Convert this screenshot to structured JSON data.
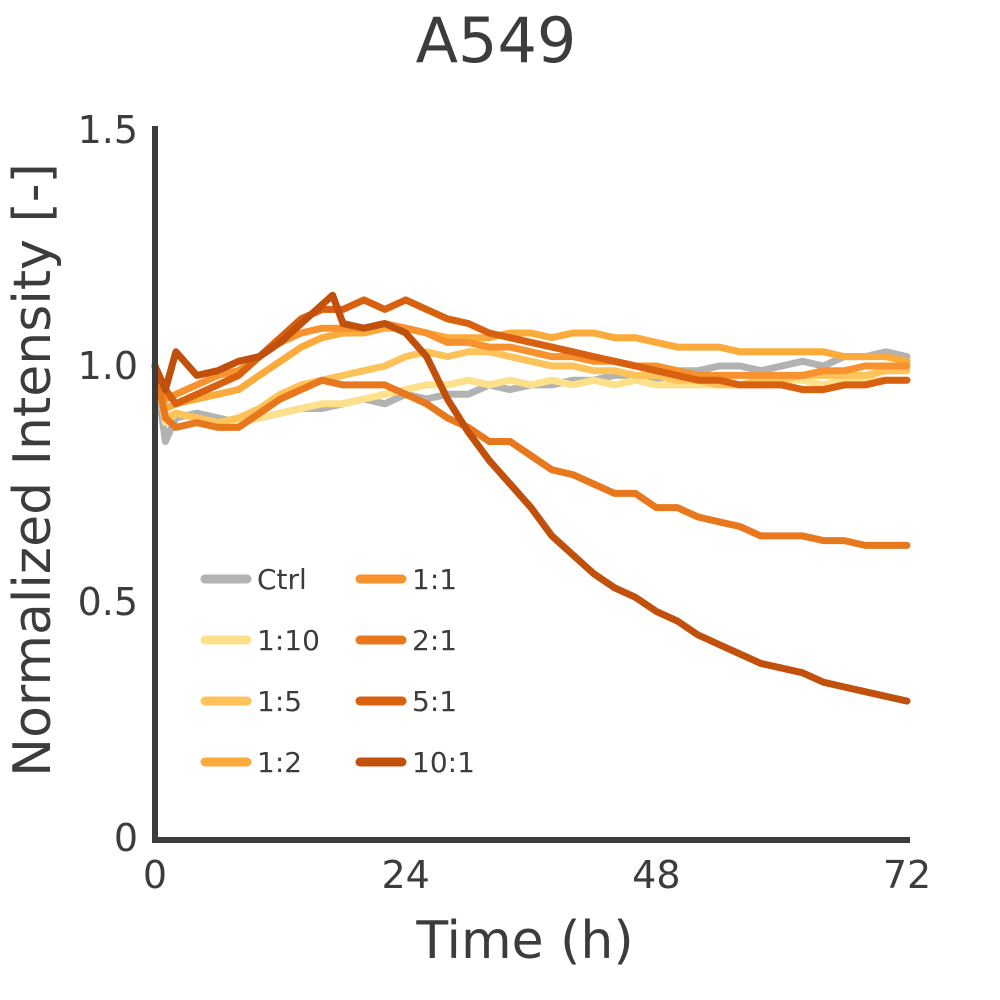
{
  "chart_data": {
    "type": "line",
    "title": "A549",
    "xlabel": "Time (h)",
    "ylabel": "Normalized Intensity [-]",
    "xlim": [
      0,
      72
    ],
    "ylim": [
      0,
      1.5
    ],
    "xticks": [
      0,
      24,
      48,
      72
    ],
    "yticks": [
      0,
      0.5,
      1.0,
      1.5
    ],
    "ytick_labels": [
      "0",
      "0.5",
      "1.0",
      "1.5"
    ],
    "grid": false,
    "legend_position": "lower-left",
    "series": [
      {
        "name": "Ctrl",
        "color": "#b2b2b2",
        "x": [
          0,
          1,
          2,
          4,
          6,
          8,
          10,
          12,
          14,
          16,
          18,
          20,
          22,
          24,
          26,
          28,
          30,
          32,
          34,
          36,
          38,
          40,
          42,
          44,
          46,
          48,
          50,
          52,
          54,
          56,
          58,
          60,
          62,
          64,
          66,
          68,
          70,
          72
        ],
        "values": [
          1.0,
          0.84,
          0.89,
          0.9,
          0.89,
          0.88,
          0.89,
          0.9,
          0.91,
          0.91,
          0.92,
          0.93,
          0.92,
          0.94,
          0.93,
          0.94,
          0.94,
          0.96,
          0.95,
          0.96,
          0.96,
          0.97,
          0.97,
          0.98,
          0.98,
          0.97,
          0.99,
          0.99,
          1.0,
          1.0,
          0.99,
          1.0,
          1.01,
          1.0,
          1.02,
          1.02,
          1.03,
          1.02
        ]
      },
      {
        "name": "1:10",
        "color": "#fce08a",
        "x": [
          0,
          1,
          2,
          4,
          6,
          8,
          10,
          12,
          14,
          16,
          18,
          20,
          22,
          24,
          26,
          28,
          30,
          32,
          34,
          36,
          38,
          40,
          42,
          44,
          46,
          48,
          50,
          52,
          54,
          56,
          58,
          60,
          62,
          64,
          66,
          68,
          70,
          72
        ],
        "values": [
          1.0,
          0.88,
          0.9,
          0.89,
          0.88,
          0.88,
          0.89,
          0.9,
          0.91,
          0.92,
          0.92,
          0.93,
          0.94,
          0.95,
          0.96,
          0.96,
          0.97,
          0.96,
          0.97,
          0.96,
          0.97,
          0.96,
          0.97,
          0.96,
          0.97,
          0.96,
          0.96,
          0.96,
          0.96,
          0.96,
          0.96,
          0.97,
          0.97,
          0.96,
          0.97,
          0.97,
          0.97,
          0.97
        ]
      },
      {
        "name": "1:5",
        "color": "#fdc35a",
        "x": [
          0,
          1,
          2,
          4,
          6,
          8,
          10,
          12,
          14,
          16,
          18,
          20,
          22,
          24,
          26,
          28,
          30,
          32,
          34,
          36,
          38,
          40,
          42,
          44,
          46,
          48,
          50,
          52,
          54,
          56,
          58,
          60,
          62,
          64,
          66,
          68,
          70,
          72
        ],
        "values": [
          1.0,
          0.89,
          0.9,
          0.89,
          0.88,
          0.89,
          0.91,
          0.94,
          0.96,
          0.97,
          0.98,
          0.99,
          1.0,
          1.02,
          1.03,
          1.02,
          1.03,
          1.03,
          1.02,
          1.01,
          1.0,
          1.0,
          0.99,
          0.99,
          0.98,
          0.98,
          0.97,
          0.97,
          0.96,
          0.96,
          0.97,
          0.97,
          0.98,
          0.98,
          0.98,
          0.98,
          0.99,
          0.99
        ]
      },
      {
        "name": "1:2",
        "color": "#fbab3c",
        "x": [
          0,
          1,
          2,
          4,
          6,
          8,
          10,
          12,
          14,
          16,
          18,
          20,
          22,
          24,
          26,
          28,
          30,
          32,
          34,
          36,
          38,
          40,
          42,
          44,
          46,
          48,
          50,
          52,
          54,
          56,
          58,
          60,
          62,
          64,
          66,
          68,
          70,
          72
        ],
        "values": [
          1.0,
          0.91,
          0.92,
          0.93,
          0.94,
          0.95,
          0.98,
          1.01,
          1.04,
          1.06,
          1.07,
          1.07,
          1.08,
          1.08,
          1.07,
          1.06,
          1.06,
          1.06,
          1.07,
          1.07,
          1.06,
          1.07,
          1.07,
          1.06,
          1.06,
          1.05,
          1.04,
          1.04,
          1.04,
          1.03,
          1.03,
          1.03,
          1.03,
          1.03,
          1.02,
          1.02,
          1.02,
          1.01
        ]
      },
      {
        "name": "1:1",
        "color": "#f7922e",
        "x": [
          0,
          1,
          2,
          4,
          6,
          8,
          10,
          12,
          14,
          16,
          18,
          20,
          22,
          24,
          26,
          28,
          30,
          32,
          34,
          36,
          38,
          40,
          42,
          44,
          46,
          48,
          50,
          52,
          54,
          56,
          58,
          60,
          62,
          64,
          66,
          68,
          70,
          72
        ],
        "values": [
          1.0,
          0.93,
          0.94,
          0.96,
          0.98,
          0.99,
          1.02,
          1.05,
          1.07,
          1.08,
          1.08,
          1.08,
          1.09,
          1.08,
          1.07,
          1.05,
          1.05,
          1.04,
          1.04,
          1.03,
          1.02,
          1.02,
          1.01,
          1.01,
          1.0,
          1.0,
          0.99,
          0.98,
          0.98,
          0.98,
          0.98,
          0.98,
          0.98,
          0.99,
          0.99,
          1.0,
          1.0,
          1.0
        ]
      },
      {
        "name": "2:1",
        "color": "#e8781e",
        "x": [
          0,
          1,
          2,
          4,
          6,
          8,
          10,
          12,
          14,
          16,
          18,
          20,
          22,
          24,
          26,
          28,
          30,
          32,
          34,
          36,
          38,
          40,
          42,
          44,
          46,
          48,
          50,
          52,
          54,
          56,
          58,
          60,
          62,
          64,
          66,
          68,
          70,
          72
        ],
        "values": [
          1.0,
          0.89,
          0.87,
          0.88,
          0.87,
          0.87,
          0.9,
          0.93,
          0.95,
          0.97,
          0.96,
          0.96,
          0.96,
          0.94,
          0.92,
          0.89,
          0.87,
          0.84,
          0.84,
          0.81,
          0.78,
          0.77,
          0.75,
          0.73,
          0.73,
          0.7,
          0.7,
          0.68,
          0.67,
          0.66,
          0.64,
          0.64,
          0.64,
          0.63,
          0.63,
          0.62,
          0.62,
          0.62
        ]
      },
      {
        "name": "5:1",
        "color": "#d8600f",
        "x": [
          0,
          1,
          2,
          4,
          6,
          8,
          10,
          12,
          14,
          16,
          18,
          20,
          22,
          24,
          26,
          28,
          30,
          32,
          34,
          36,
          38,
          40,
          42,
          44,
          46,
          48,
          50,
          52,
          54,
          56,
          58,
          60,
          62,
          64,
          66,
          68,
          70,
          72
        ],
        "values": [
          1.0,
          0.95,
          0.92,
          0.94,
          0.96,
          0.98,
          1.02,
          1.06,
          1.1,
          1.12,
          1.12,
          1.14,
          1.12,
          1.14,
          1.12,
          1.1,
          1.09,
          1.07,
          1.06,
          1.05,
          1.04,
          1.03,
          1.02,
          1.01,
          1.0,
          0.99,
          0.98,
          0.97,
          0.97,
          0.96,
          0.96,
          0.96,
          0.95,
          0.95,
          0.96,
          0.96,
          0.97,
          0.97
        ]
      },
      {
        "name": "10:1",
        "color": "#c0500c",
        "x": [
          0,
          1,
          2,
          4,
          6,
          8,
          10,
          12,
          14,
          16,
          17,
          18,
          20,
          22,
          24,
          26,
          28,
          30,
          32,
          34,
          36,
          38,
          40,
          42,
          44,
          46,
          48,
          50,
          52,
          54,
          56,
          58,
          60,
          62,
          64,
          66,
          68,
          70,
          72
        ],
        "values": [
          1.0,
          0.95,
          1.03,
          0.98,
          0.99,
          1.01,
          1.02,
          1.05,
          1.09,
          1.13,
          1.15,
          1.09,
          1.08,
          1.09,
          1.07,
          1.02,
          0.93,
          0.86,
          0.8,
          0.75,
          0.7,
          0.64,
          0.6,
          0.56,
          0.53,
          0.51,
          0.48,
          0.46,
          0.43,
          0.41,
          0.39,
          0.37,
          0.36,
          0.35,
          0.33,
          0.32,
          0.31,
          0.3,
          0.29
        ]
      }
    ]
  }
}
